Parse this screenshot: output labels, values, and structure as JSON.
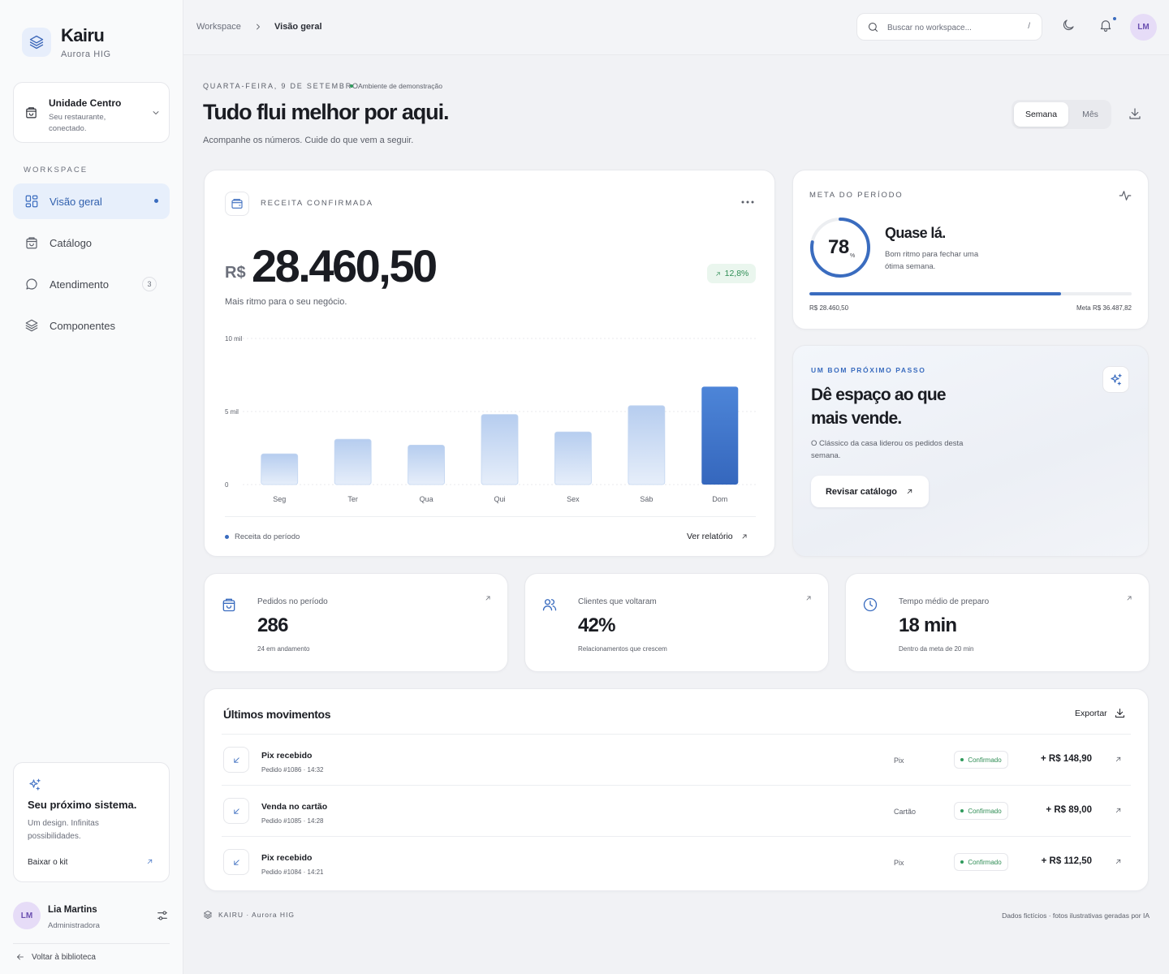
{
  "brand": {
    "name": "Kairu",
    "subtitle": "Aurora HIG"
  },
  "unit": {
    "title": "Unidade Centro",
    "subtitle": "Seu restaurante, conectado."
  },
  "sidebar": {
    "section_label": "WORKSPACE",
    "items": [
      {
        "label": "Visão geral",
        "icon": "grid-icon",
        "active": true
      },
      {
        "label": "Catálogo",
        "icon": "bag-icon"
      },
      {
        "label": "Atendimento",
        "icon": "chat-icon",
        "badge": "3"
      },
      {
        "label": "Componentes",
        "icon": "layers-icon"
      }
    ],
    "promo": {
      "title": "Seu próximo sistema.",
      "text": "Um design. Infinitas possibilidades.",
      "link": "Baixar o kit"
    },
    "user": {
      "initials": "LM",
      "name": "Lia Martins",
      "role": "Administradora"
    },
    "back_link": "Voltar à biblioteca"
  },
  "topbar": {
    "breadcrumb": [
      "Workspace",
      "Visão geral"
    ],
    "search_placeholder": "Buscar no workspace...",
    "search_shortcut": "/",
    "avatar": "LM"
  },
  "header": {
    "date": "QUARTA-FEIRA, 9 DE SETEMBRO",
    "env_badge": "Ambiente de demonstração",
    "title": "Tudo flui melhor por aqui.",
    "subtitle": "Acompanhe os números. Cuide do que vem a seguir.",
    "period_options": [
      "Semana",
      "Mês"
    ],
    "period_selected": "Semana"
  },
  "revenue": {
    "label": "RECEITA CONFIRMADA",
    "currency": "R$",
    "value": "28.460,50",
    "delta": "12,8%",
    "subtitle": "Mais ritmo para o seu negócio.",
    "legend": "Receita do período",
    "report_link": "Ver relatório"
  },
  "chart_data": {
    "type": "bar",
    "categories": [
      "Seg",
      "Ter",
      "Qua",
      "Qui",
      "Sex",
      "Sáb",
      "Dom"
    ],
    "values": [
      2100,
      3100,
      2700,
      4800,
      3600,
      5400,
      6700
    ],
    "yticks": [
      {
        "value": 0,
        "label": "0"
      },
      {
        "value": 5000,
        "label": "5 mil"
      },
      {
        "value": 10000,
        "label": "10 mil"
      }
    ],
    "ylim": [
      0,
      10000
    ],
    "highlight_index": 6,
    "grid": true,
    "colors": {
      "bar": "#bcd3f1",
      "highlight": "#3b74cc"
    }
  },
  "goal": {
    "label": "META DO PERÍODO",
    "percent": 78,
    "percent_suffix": "%",
    "title": "Quase lá.",
    "text": "Bom ritmo para fechar uma ótima semana.",
    "current": "R$ 28.460,50",
    "target": "Meta R$ 36.487,82"
  },
  "next_step": {
    "label": "UM BOM PRÓXIMO PASSO",
    "title": "Dê espaço ao que mais vende.",
    "text": "O Clássico da casa liderou os pedidos desta semana.",
    "button": "Revisar catálogo"
  },
  "kpis": [
    {
      "icon": "bag-icon",
      "label": "Pedidos no período",
      "value": "286",
      "sub": "24 em andamento"
    },
    {
      "icon": "users-icon",
      "label": "Clientes que voltaram",
      "value": "42%",
      "sub": "Relacionamentos que crescem"
    },
    {
      "icon": "clock-icon",
      "label": "Tempo médio de preparo",
      "value": "18 min",
      "sub": "Dentro da meta de 20 min"
    }
  ],
  "transactions": {
    "title": "Últimos movimentos",
    "export": "Exportar",
    "rows": [
      {
        "name": "Pix recebido",
        "order": "Pedido #1086 · 14:32",
        "method": "Pix",
        "status": "Confirmado",
        "amount": "+ R$ 148,90"
      },
      {
        "name": "Venda no cartão",
        "order": "Pedido #1085 · 14:28",
        "method": "Cartão",
        "status": "Confirmado",
        "amount": "+ R$ 89,00"
      },
      {
        "name": "Pix recebido",
        "order": "Pedido #1084 · 14:21",
        "method": "Pix",
        "status": "Confirmado",
        "amount": "+ R$ 112,50"
      }
    ]
  },
  "footer": {
    "brand": "KAIRU · Aurora HIG",
    "note": "Dados fictícios · fotos ilustrativas geradas por IA"
  },
  "colors": {
    "accent": "#3a6cbf",
    "success": "#2f8d55",
    "avatar_bg": "#e6dcf7"
  }
}
